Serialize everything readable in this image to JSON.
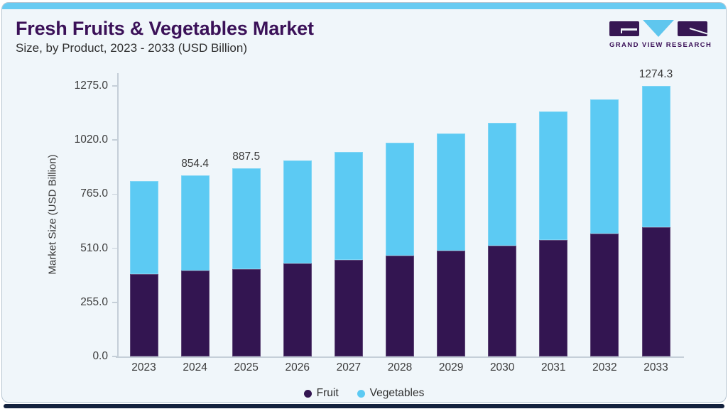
{
  "page": {
    "title": "Fresh Fruits & Vegetables Market",
    "subtitle": "Size, by Product, 2023 - 2033 (USD Billion)"
  },
  "logo": {
    "text": "GRAND VIEW RESEARCH",
    "gvr_icon": "g-block-icon, v-triangle-icon, r-block-icon"
  },
  "colors": {
    "fruit": "#331551",
    "vegetables": "#5CCAF3",
    "title_text": "#3B1158",
    "card_background": "#F0F6FA",
    "top_accent_strip": "#68CBF2",
    "bottom_accent_strip": "#14223E",
    "axis_line": "#C5CFD8",
    "axis_text": "#3C3C3C"
  },
  "chart_data": {
    "type": "bar",
    "stacked": true,
    "title": "Fresh Fruits & Vegetables Market Size, by Product, 2023 - 2033 (USD Billion)",
    "categories": [
      "2023",
      "2024",
      "2025",
      "2026",
      "2027",
      "2028",
      "2029",
      "2030",
      "2031",
      "2032",
      "2033"
    ],
    "series": [
      {
        "name": "Fruit",
        "color": "#331551",
        "values": [
          387,
          404,
          413,
          437,
          454,
          474,
          498,
          523,
          549,
          579,
          609
        ]
      },
      {
        "name": "Vegetables",
        "color": "#5CCAF3",
        "values": [
          438,
          450.4,
          474.5,
          485,
          511,
          532,
          553,
          579,
          604,
          632,
          665.3
        ]
      }
    ],
    "totals": [
      825,
      854.4,
      887.5,
      922,
      965,
      1006,
      1051,
      1102,
      1153,
      1211,
      1274.3
    ],
    "annotations": [
      {
        "category": "2024",
        "label": "854.4"
      },
      {
        "category": "2025",
        "label": "887.5"
      },
      {
        "category": "2033",
        "label": "1274.3"
      }
    ],
    "xlabel": "",
    "ylabel": "Market Size (USD Billion)",
    "yticks": [
      0,
      255,
      510,
      765,
      1020,
      1275
    ],
    "ytick_labels": [
      "0.0",
      "255.0",
      "510.0",
      "765.0",
      "1020.0",
      "1275.0"
    ],
    "ylim": [
      0,
      1335
    ],
    "grid": false,
    "legend_position": "bottom",
    "legend": [
      "Fruit",
      "Vegetables"
    ]
  }
}
